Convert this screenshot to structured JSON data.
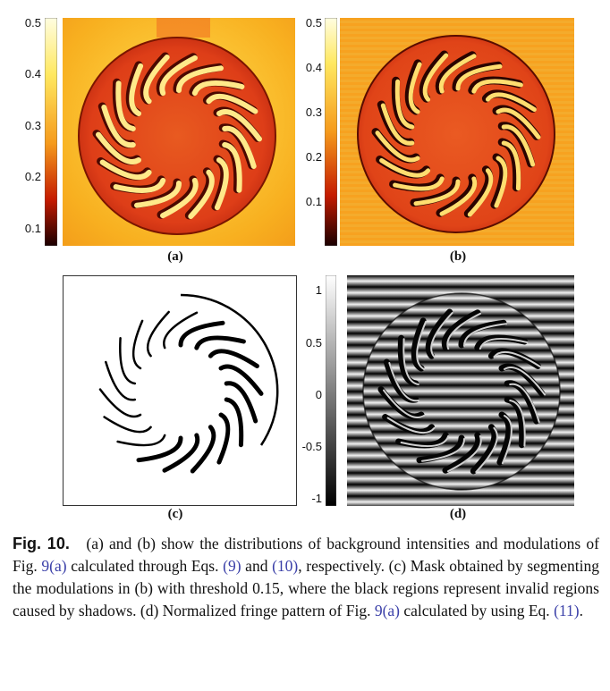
{
  "panels": {
    "a": {
      "label": "(a)",
      "colorbar_ticks": [
        "0.5",
        "0.4",
        "0.3",
        "0.2",
        "0.1"
      ],
      "colormap": "hot"
    },
    "b": {
      "label": "(b)",
      "colorbar_ticks": [
        "0.5",
        "0.4",
        "0.3",
        "0.2",
        "0.1"
      ],
      "colormap": "hot"
    },
    "c": {
      "label": "(c)"
    },
    "d": {
      "label": "(d)",
      "colorbar_ticks": [
        "1",
        "0.5",
        "0",
        "-0.5",
        "-1"
      ],
      "colormap": "gray"
    }
  },
  "colors": {
    "hot_high": "#fff7a0",
    "hot_mid": "#f59a1c",
    "hot_low": "#200000",
    "disc_a": "#e0401a",
    "disc_b": "#e34a1a",
    "ref_blue": "#3a3fa8"
  },
  "caption": {
    "fig_label": "Fig. 10.",
    "t1": "(a) and (b) show the distributions of background intensities and modulations of Fig.",
    "ref1": "9(a)",
    "t2": "calculated through Eqs.",
    "ref2": "(9)",
    "t3": "and",
    "ref3": "(10)",
    "t4": ", respectively. (c) Mask obtained by segmenting the modulations in (b) with threshold 0.15, where the black regions represent invalid regions caused by shadows. (d) Normalized fringe pattern of Fig.",
    "ref4": "9(a)",
    "t5": "calculated by using Eq.",
    "ref5": "(11)",
    "t6": "."
  }
}
